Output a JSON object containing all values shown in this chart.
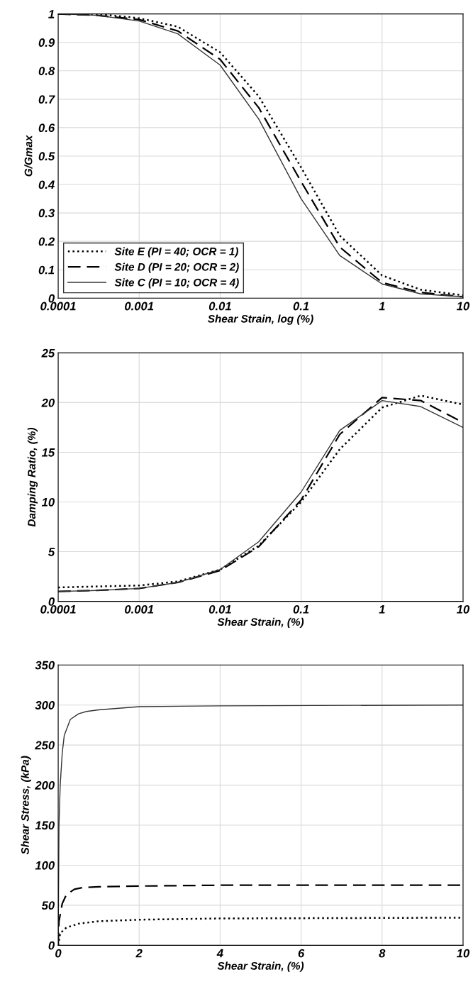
{
  "chart_data": [
    {
      "type": "line",
      "ylabel": "G/Gmax",
      "xlabel": "Shear Strain, log (%)",
      "log": "x",
      "grid": true,
      "legend": "bottom left",
      "xlim": [
        0.0001,
        10
      ],
      "xticks": [
        0.0001,
        0.001,
        0.01,
        0.1,
        1,
        10
      ],
      "ylim": [
        0,
        1
      ],
      "yticks": [
        0,
        0.1,
        0.2,
        0.3,
        0.4,
        0.5,
        0.6,
        0.7,
        0.8,
        0.9,
        1
      ],
      "x": [
        0.0001,
        0.0003,
        0.001,
        0.003,
        0.01,
        0.03,
        0.1,
        0.3,
        1,
        3,
        10
      ],
      "series": [
        {
          "name": "Site E (PI = 40; OCR = 1)",
          "color": "#000000",
          "line_style": "dotted",
          "values": [
            1,
            1.0,
            0.985,
            0.955,
            0.865,
            0.71,
            0.46,
            0.22,
            0.08,
            0.03,
            0.01
          ]
        },
        {
          "name": "Site D (PI = 20; OCR = 2)",
          "color": "#000000",
          "line_style": "dashed",
          "values": [
            1,
            0.995,
            0.98,
            0.94,
            0.84,
            0.67,
            0.41,
            0.18,
            0.055,
            0.02,
            0.005
          ]
        },
        {
          "name": "Site C (PI = 10; OCR = 4)",
          "color": "#333333",
          "line_style": "solid",
          "values": [
            1,
            0.995,
            0.975,
            0.93,
            0.82,
            0.63,
            0.35,
            0.15,
            0.05,
            0.015,
            0.005
          ]
        }
      ]
    },
    {
      "type": "line",
      "ylabel": "Damping Ratio, (%)",
      "xlabel": "Shear Strain, (%)",
      "log": "x",
      "grid": true,
      "xlim": [
        0.0001,
        10
      ],
      "xticks": [
        0.0001,
        0.001,
        0.01,
        0.1,
        1,
        10
      ],
      "ylim": [
        0,
        25
      ],
      "yticks": [
        0,
        5,
        10,
        15,
        20,
        25
      ],
      "x": [
        0.0001,
        0.0003,
        0.001,
        0.003,
        0.01,
        0.03,
        0.1,
        0.3,
        1,
        3,
        10
      ],
      "series": [
        {
          "color": "#000000",
          "line_style": "dotted",
          "values": [
            1.4,
            1.5,
            1.6,
            2.0,
            3.2,
            5.6,
            10.0,
            15.3,
            19.5,
            20.7,
            19.8
          ]
        },
        {
          "color": "#000000",
          "line_style": "dashed",
          "values": [
            1.0,
            1.1,
            1.3,
            1.9,
            3.1,
            5.5,
            10.2,
            16.8,
            20.5,
            20.2,
            18.0
          ]
        },
        {
          "color": "#333333",
          "line_style": "solid",
          "values": [
            1.0,
            1.1,
            1.3,
            1.9,
            3.2,
            6.0,
            11.0,
            17.2,
            20.2,
            19.6,
            17.5
          ]
        }
      ]
    },
    {
      "type": "line",
      "ylabel": "Shear Stress, (kPa)",
      "xlabel": "Shear Strain, (%)",
      "grid": true,
      "xlim": [
        0,
        10
      ],
      "xticks": [
        0,
        2,
        4,
        6,
        8,
        10
      ],
      "ylim": [
        0,
        350
      ],
      "yticks": [
        0,
        50,
        100,
        150,
        200,
        250,
        300,
        350
      ],
      "series": [
        {
          "color": "#000000",
          "line_style": "dotted",
          "x": [
            0,
            0.05,
            0.2,
            0.5,
            1,
            2,
            4,
            10
          ],
          "values": [
            0,
            15,
            22,
            27,
            30,
            32,
            33.5,
            34.5
          ]
        },
        {
          "color": "#000000",
          "line_style": "dashed",
          "x": [
            0,
            0.02,
            0.1,
            0.2,
            0.4,
            0.6,
            1,
            2,
            4,
            10
          ],
          "values": [
            0,
            30,
            52,
            63,
            70,
            72,
            73,
            74,
            75,
            75
          ]
        },
        {
          "color": "#333333",
          "line_style": "solid",
          "x": [
            0,
            0.02,
            0.05,
            0.1,
            0.15,
            0.3,
            0.5,
            0.7,
            1,
            2,
            4,
            10
          ],
          "values": [
            0,
            150,
            200,
            240,
            262,
            282,
            289,
            292,
            294,
            298,
            299,
            300
          ]
        }
      ]
    }
  ]
}
